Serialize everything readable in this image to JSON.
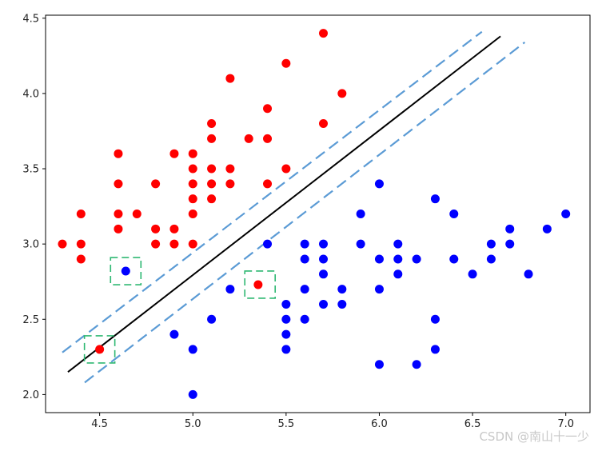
{
  "chart_data": {
    "type": "scatter",
    "title": "",
    "xlabel": "",
    "ylabel": "",
    "xlim": [
      4.21,
      7.13
    ],
    "ylim": [
      1.88,
      4.52
    ],
    "x_ticks": [
      "4.5",
      "5.0",
      "5.5",
      "6.0",
      "6.5",
      "7.0"
    ],
    "y_ticks": [
      "2.0",
      "2.5",
      "3.0",
      "3.5",
      "4.0",
      "4.5"
    ],
    "grid": false,
    "legend": "none",
    "series": [
      {
        "color": "#ff0000",
        "points": [
          [
            4.3,
            3.0
          ],
          [
            4.4,
            2.9
          ],
          [
            4.4,
            3.0
          ],
          [
            4.4,
            3.2
          ],
          [
            4.5,
            2.3
          ],
          [
            4.6,
            3.1
          ],
          [
            4.6,
            3.2
          ],
          [
            4.6,
            3.4
          ],
          [
            4.6,
            3.6
          ],
          [
            4.7,
            3.2
          ],
          [
            4.8,
            3.0
          ],
          [
            4.8,
            3.1
          ],
          [
            4.8,
            3.4
          ],
          [
            4.9,
            3.0
          ],
          [
            4.9,
            3.1
          ],
          [
            4.9,
            3.6
          ],
          [
            5.0,
            3.0
          ],
          [
            5.0,
            3.2
          ],
          [
            5.0,
            3.3
          ],
          [
            5.0,
            3.4
          ],
          [
            5.0,
            3.5
          ],
          [
            5.0,
            3.6
          ],
          [
            5.1,
            3.3
          ],
          [
            5.1,
            3.4
          ],
          [
            5.1,
            3.5
          ],
          [
            5.1,
            3.7
          ],
          [
            5.1,
            3.8
          ],
          [
            5.2,
            3.4
          ],
          [
            5.2,
            3.5
          ],
          [
            5.2,
            4.1
          ],
          [
            5.3,
            3.7
          ],
          [
            5.35,
            2.73
          ],
          [
            5.4,
            3.4
          ],
          [
            5.4,
            3.7
          ],
          [
            5.4,
            3.9
          ],
          [
            5.5,
            3.5
          ],
          [
            5.5,
            4.2
          ],
          [
            5.7,
            3.8
          ],
          [
            5.7,
            4.4
          ],
          [
            5.8,
            4.0
          ]
        ]
      },
      {
        "color": "#0000ff",
        "points": [
          [
            4.64,
            2.82
          ],
          [
            4.9,
            2.4
          ],
          [
            5.0,
            2.0
          ],
          [
            5.0,
            2.3
          ],
          [
            5.1,
            2.5
          ],
          [
            5.2,
            2.7
          ],
          [
            5.4,
            3.0
          ],
          [
            5.5,
            2.3
          ],
          [
            5.5,
            2.4
          ],
          [
            5.5,
            2.5
          ],
          [
            5.5,
            2.6
          ],
          [
            5.6,
            2.5
          ],
          [
            5.6,
            2.7
          ],
          [
            5.6,
            2.9
          ],
          [
            5.6,
            3.0
          ],
          [
            5.7,
            2.6
          ],
          [
            5.7,
            2.8
          ],
          [
            5.7,
            2.9
          ],
          [
            5.7,
            3.0
          ],
          [
            5.8,
            2.6
          ],
          [
            5.8,
            2.7
          ],
          [
            5.9,
            3.0
          ],
          [
            5.9,
            3.2
          ],
          [
            6.0,
            2.2
          ],
          [
            6.0,
            2.7
          ],
          [
            6.0,
            2.9
          ],
          [
            6.0,
            3.4
          ],
          [
            6.1,
            2.8
          ],
          [
            6.1,
            2.9
          ],
          [
            6.1,
            3.0
          ],
          [
            6.2,
            2.2
          ],
          [
            6.2,
            2.9
          ],
          [
            6.3,
            2.3
          ],
          [
            6.3,
            2.5
          ],
          [
            6.3,
            3.3
          ],
          [
            6.4,
            2.9
          ],
          [
            6.4,
            3.2
          ],
          [
            6.5,
            2.8
          ],
          [
            6.6,
            2.9
          ],
          [
            6.6,
            3.0
          ],
          [
            6.7,
            3.0
          ],
          [
            6.7,
            3.1
          ],
          [
            6.8,
            2.8
          ],
          [
            6.9,
            3.1
          ],
          [
            7.0,
            3.2
          ]
        ]
      }
    ],
    "decision_boundary": {
      "color": "#000000",
      "points": [
        [
          4.33,
          2.15
        ],
        [
          6.65,
          4.38
        ]
      ]
    },
    "margins": [
      {
        "color": "#5b9bd5",
        "style": "dashed",
        "points": [
          [
            4.3,
            2.28
          ],
          [
            6.55,
            4.41
          ]
        ]
      },
      {
        "color": "#5b9bd5",
        "style": "dashed",
        "points": [
          [
            4.42,
            2.08
          ],
          [
            6.78,
            4.34
          ]
        ]
      }
    ],
    "highlight_boxes": {
      "color": "#2eb872",
      "style": "dashed",
      "centers": [
        [
          4.64,
          2.82
        ],
        [
          4.5,
          2.3
        ],
        [
          5.36,
          2.73
        ]
      ]
    }
  },
  "watermark": "CSDN @南山十一少"
}
